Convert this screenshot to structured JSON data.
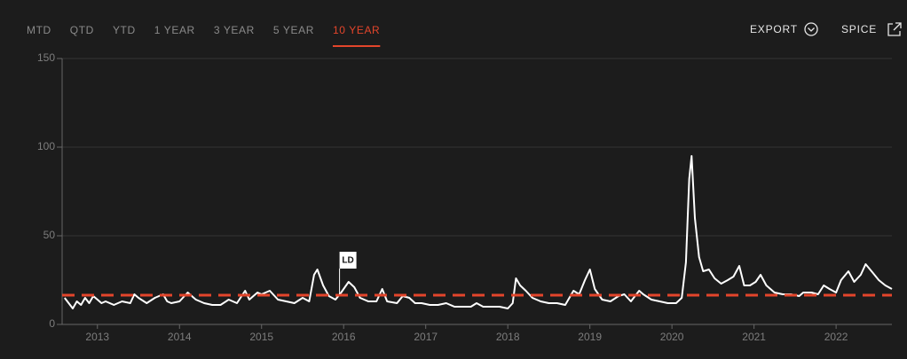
{
  "tabs": [
    "MTD",
    "QTD",
    "YTD",
    "1 YEAR",
    "3 YEAR",
    "5 YEAR",
    "10 YEAR"
  ],
  "active_tab": 6,
  "actions": [
    "EXPORT",
    "SPICE"
  ],
  "chart_data": {
    "type": "line",
    "x": [
      2012.6,
      2012.65,
      2012.7,
      2012.75,
      2012.8,
      2012.85,
      2012.9,
      2012.95,
      2013.0,
      2013.05,
      2013.1,
      2013.2,
      2013.3,
      2013.4,
      2013.45,
      2013.5,
      2013.6,
      2013.7,
      2013.8,
      2013.85,
      2013.9,
      2014.0,
      2014.1,
      2014.2,
      2014.3,
      2014.4,
      2014.5,
      2014.6,
      2014.7,
      2014.8,
      2014.85,
      2014.95,
      2015.0,
      2015.1,
      2015.2,
      2015.3,
      2015.4,
      2015.5,
      2015.58,
      2015.64,
      2015.68,
      2015.75,
      2015.82,
      2015.9,
      2015.97,
      2016.06,
      2016.13,
      2016.2,
      2016.3,
      2016.4,
      2016.47,
      2016.53,
      2016.65,
      2016.72,
      2016.8,
      2016.87,
      2016.95,
      2017.05,
      2017.15,
      2017.25,
      2017.35,
      2017.45,
      2017.55,
      2017.62,
      2017.7,
      2017.8,
      2017.9,
      2018.0,
      2018.06,
      2018.1,
      2018.15,
      2018.22,
      2018.3,
      2018.4,
      2018.5,
      2018.6,
      2018.7,
      2018.8,
      2018.87,
      2018.94,
      2019.0,
      2019.06,
      2019.15,
      2019.25,
      2019.35,
      2019.42,
      2019.5,
      2019.6,
      2019.65,
      2019.75,
      2019.85,
      2019.95,
      2020.05,
      2020.12,
      2020.17,
      2020.21,
      2020.24,
      2020.28,
      2020.33,
      2020.38,
      2020.45,
      2020.52,
      2020.6,
      2020.68,
      2020.75,
      2020.82,
      2020.88,
      2020.95,
      2021.02,
      2021.08,
      2021.15,
      2021.25,
      2021.35,
      2021.45,
      2021.55,
      2021.6,
      2021.7,
      2021.78,
      2021.85,
      2021.92,
      2022.0,
      2022.06,
      2022.15,
      2022.22,
      2022.3,
      2022.36,
      2022.45,
      2022.52,
      2022.6,
      2022.68
    ],
    "series": [
      {
        "color": "#ffffff",
        "values": [
          15,
          12,
          9,
          13,
          11,
          15,
          12,
          16,
          14,
          12,
          13,
          11,
          13,
          12,
          17,
          15,
          12,
          15,
          17,
          13,
          12,
          13,
          18,
          14,
          12,
          11,
          11,
          14,
          12,
          19,
          14,
          18,
          17,
          19,
          14,
          13,
          12,
          15,
          13,
          28,
          31,
          22,
          16,
          14,
          18,
          24,
          21,
          15,
          13,
          13,
          20,
          13,
          12,
          16,
          15,
          12,
          12,
          11,
          11,
          12,
          10,
          10,
          10,
          12,
          10,
          10,
          10,
          9,
          12,
          26,
          22,
          19,
          15,
          13,
          12,
          12,
          11,
          19,
          17,
          25,
          31,
          20,
          14,
          13,
          16,
          17,
          13,
          19,
          17,
          14,
          13,
          12,
          12,
          15,
          35,
          82,
          95,
          60,
          38,
          30,
          31,
          26,
          23,
          25,
          27,
          33,
          22,
          22,
          24,
          28,
          22,
          18,
          17,
          17,
          16,
          18,
          18,
          17,
          22,
          20,
          18,
          25,
          30,
          24,
          28,
          34,
          29,
          25,
          22,
          20
        ]
      }
    ],
    "reference_line": {
      "value": 16.5,
      "color": "#e3452b"
    },
    "annotations": [
      {
        "text": "LD",
        "x": 2015.95,
        "y": 17
      }
    ],
    "xlim": [
      2012.57,
      2022.68
    ],
    "xticks": [
      2013,
      2014,
      2015,
      2016,
      2017,
      2018,
      2019,
      2020,
      2021,
      2022
    ],
    "ylim": [
      0,
      150
    ],
    "yticks": [
      0,
      50,
      100,
      150
    ],
    "grid": true
  }
}
